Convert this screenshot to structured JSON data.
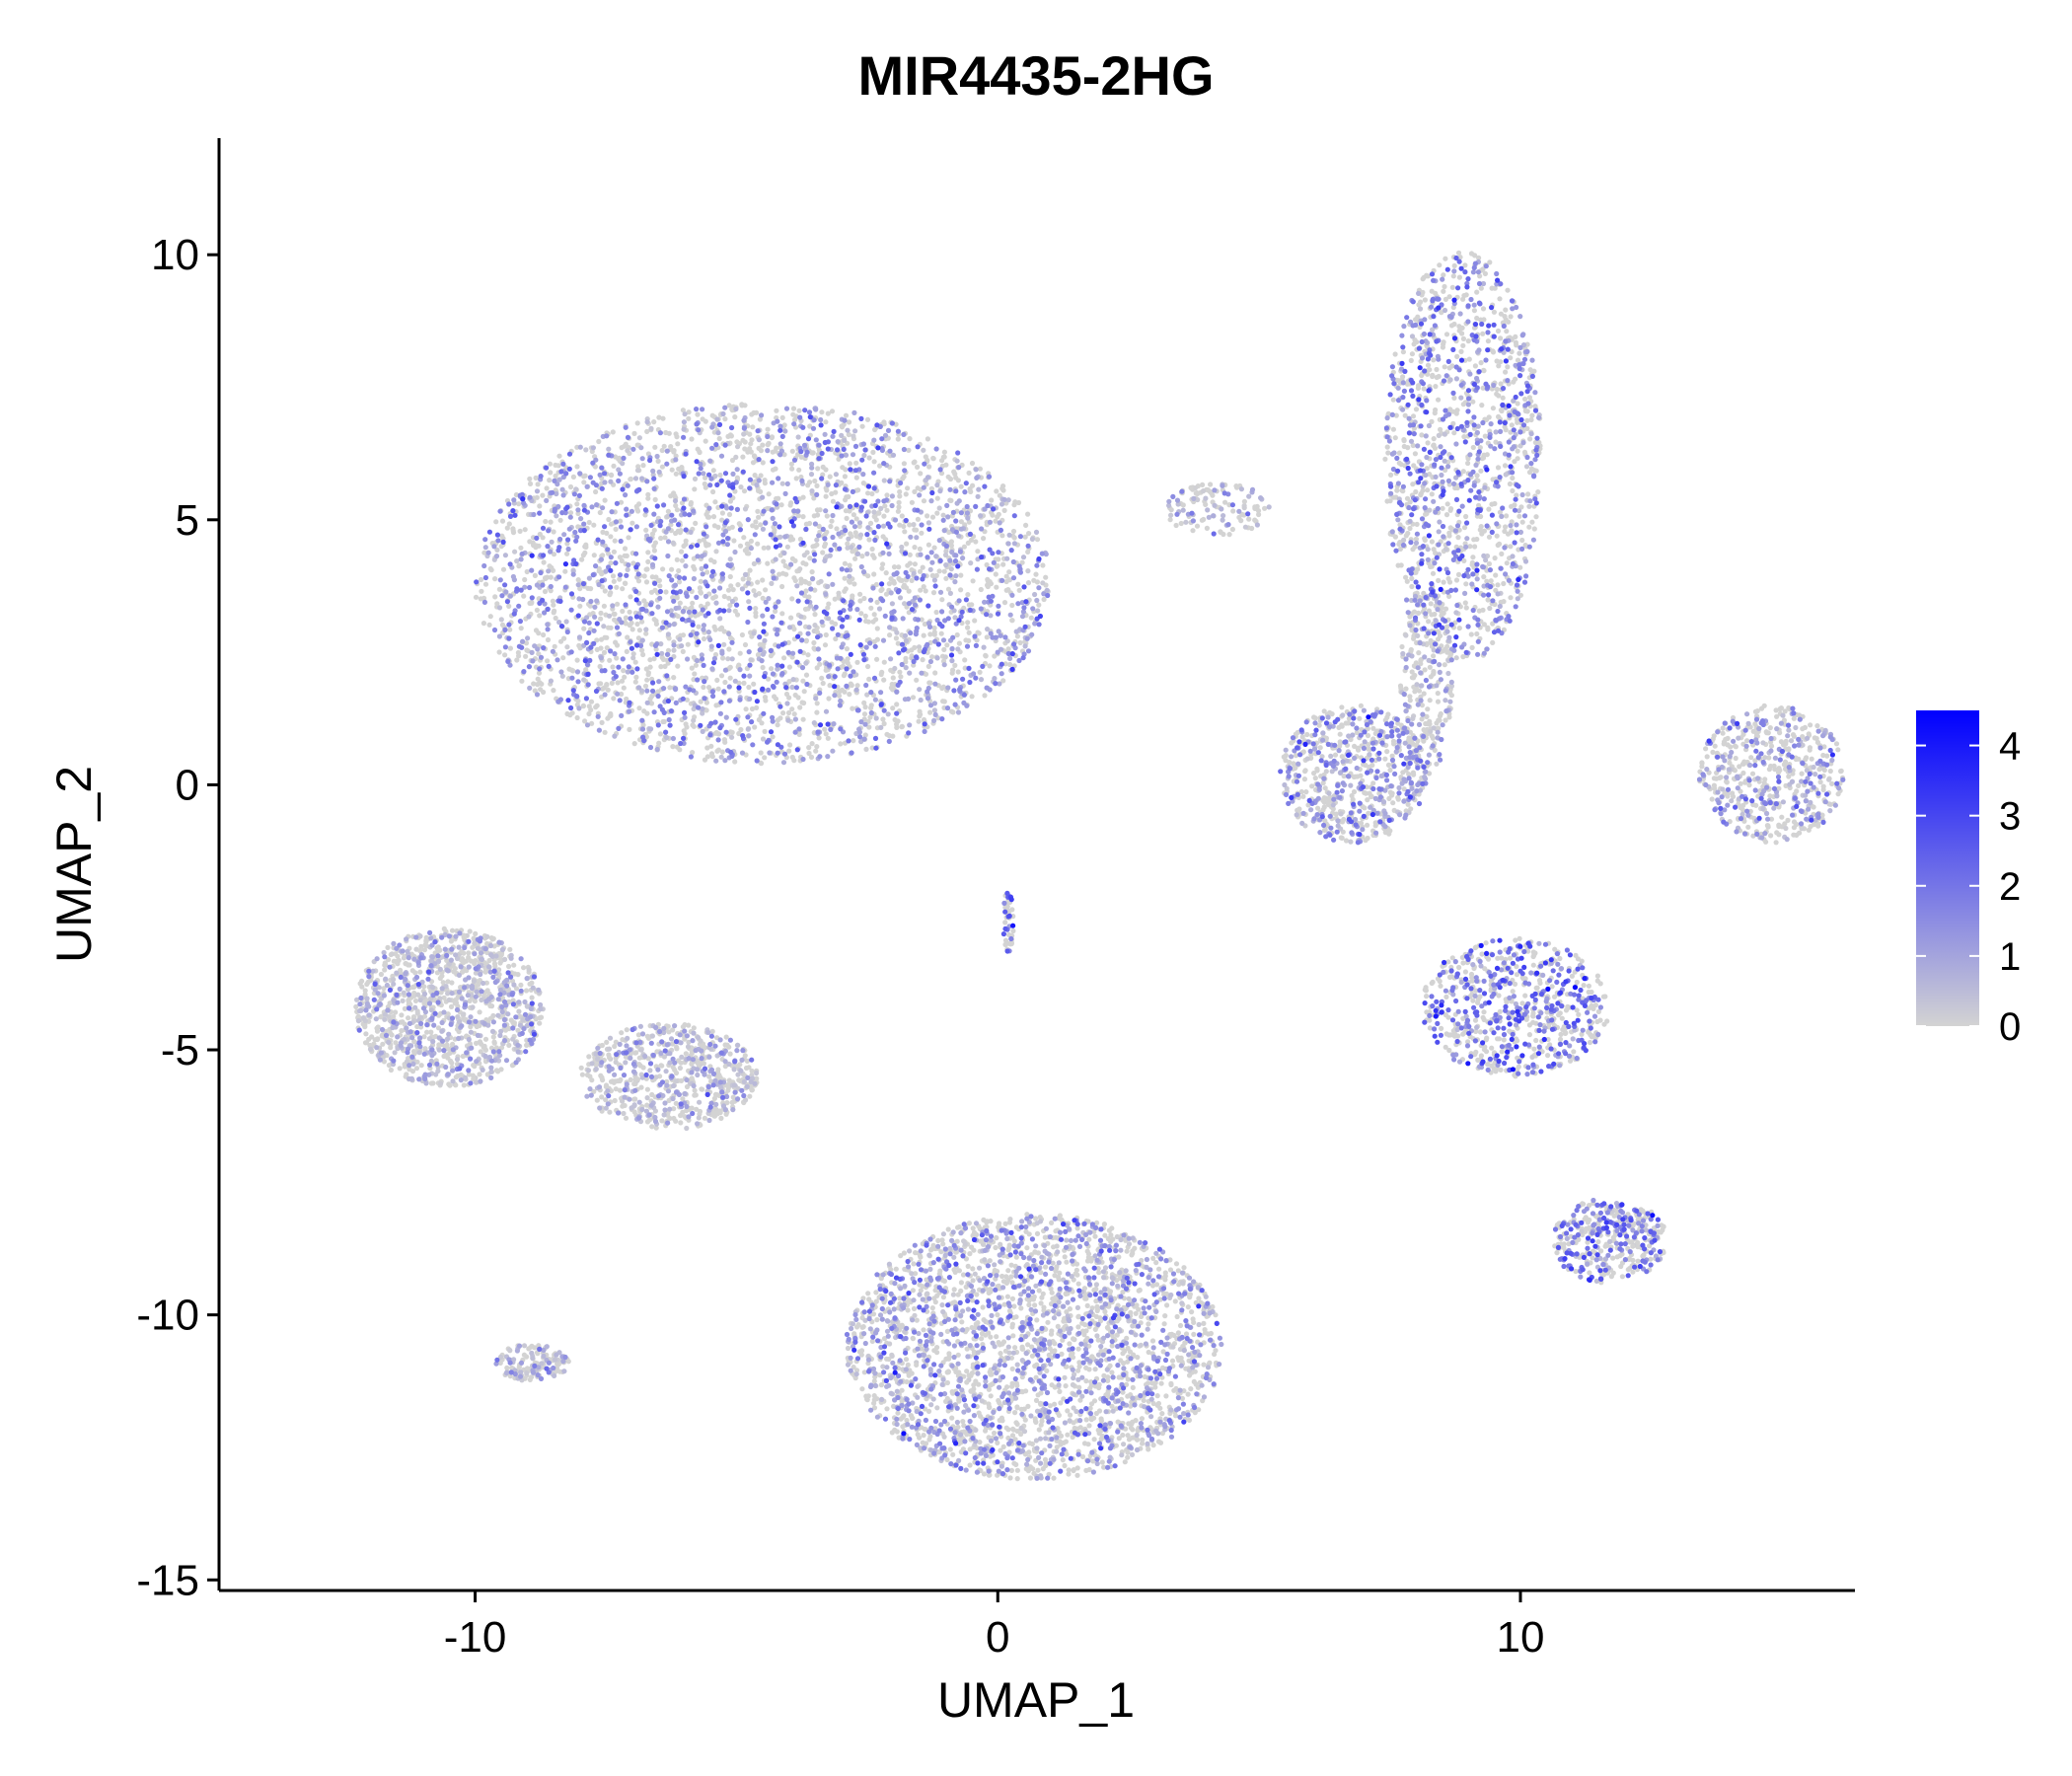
{
  "chart_data": {
    "type": "scatter",
    "title": "MIR4435-2HG",
    "xlabel": "UMAP_1",
    "ylabel": "UMAP_2",
    "xlim": [
      -14.9,
      16.4
    ],
    "ylim": [
      -15.2,
      12.2
    ],
    "xticks": [
      -10,
      0,
      10
    ],
    "yticks": [
      -15,
      -10,
      -5,
      0,
      5,
      10
    ],
    "x_tick_labels": [
      "-10",
      "0",
      "10"
    ],
    "y_tick_labels": [
      "-15",
      "-10",
      "-5",
      "0",
      "5",
      "10"
    ],
    "grid": false,
    "legend": {
      "type": "colorbar",
      "position": "right",
      "min": 0,
      "max": 4.5,
      "ticks": [
        0,
        1,
        2,
        3,
        4
      ],
      "tick_labels": [
        "0",
        "1",
        "2",
        "3",
        "4"
      ],
      "color_low": "#d3d3d3",
      "color_high": "#0000ff"
    },
    "point_color_low": "#d3d3d3",
    "point_color_high": "#0000ff",
    "clusters": [
      {
        "name": "cluster-top-left-large",
        "cx": -4.5,
        "cy": 3.8,
        "rx": 5.5,
        "ry": 3.4,
        "n": 3600,
        "expr_mean": 0.9
      },
      {
        "name": "cluster-top-right-tall",
        "cx": 8.9,
        "cy": 6.2,
        "rx": 1.5,
        "ry": 3.9,
        "n": 1300,
        "expr_mean": 1.1
      },
      {
        "name": "cluster-right-stem",
        "cx": 8.2,
        "cy": 2.0,
        "rx": 0.5,
        "ry": 1.8,
        "n": 250,
        "expr_mean": 0.4
      },
      {
        "name": "cluster-middle-right",
        "cx": 6.8,
        "cy": 0.2,
        "rx": 1.4,
        "ry": 1.3,
        "n": 650,
        "expr_mean": 0.9
      },
      {
        "name": "cluster-far-right",
        "cx": 14.8,
        "cy": 0.2,
        "rx": 1.4,
        "ry": 1.3,
        "n": 550,
        "expr_mean": 0.8
      },
      {
        "name": "cluster-center-small-top",
        "cx": 4.2,
        "cy": 5.2,
        "rx": 1.0,
        "ry": 0.5,
        "n": 120,
        "expr_mean": 0.3
      },
      {
        "name": "cluster-center-thin",
        "cx": 0.2,
        "cy": -2.6,
        "rx": 0.1,
        "ry": 0.6,
        "n": 45,
        "expr_mean": 1.5
      },
      {
        "name": "cluster-left-middle",
        "cx": -10.5,
        "cy": -4.2,
        "rx": 1.8,
        "ry": 1.5,
        "n": 1200,
        "expr_mean": 0.25
      },
      {
        "name": "cluster-left-middle-2",
        "cx": -6.3,
        "cy": -5.5,
        "rx": 1.7,
        "ry": 1.0,
        "n": 650,
        "expr_mean": 0.3
      },
      {
        "name": "cluster-right-middle",
        "cx": 9.9,
        "cy": -4.2,
        "rx": 1.8,
        "ry": 1.3,
        "n": 700,
        "expr_mean": 1.4
      },
      {
        "name": "cluster-bottom-large",
        "cx": 0.7,
        "cy": -10.6,
        "rx": 3.6,
        "ry": 2.5,
        "n": 2800,
        "expr_mean": 0.8
      },
      {
        "name": "cluster-bottom-left-small",
        "cx": -8.9,
        "cy": -10.9,
        "rx": 0.7,
        "ry": 0.35,
        "n": 140,
        "expr_mean": 0.2
      },
      {
        "name": "cluster-bottom-right",
        "cx": 11.7,
        "cy": -8.6,
        "rx": 1.1,
        "ry": 0.8,
        "n": 380,
        "expr_mean": 1.3
      }
    ]
  }
}
